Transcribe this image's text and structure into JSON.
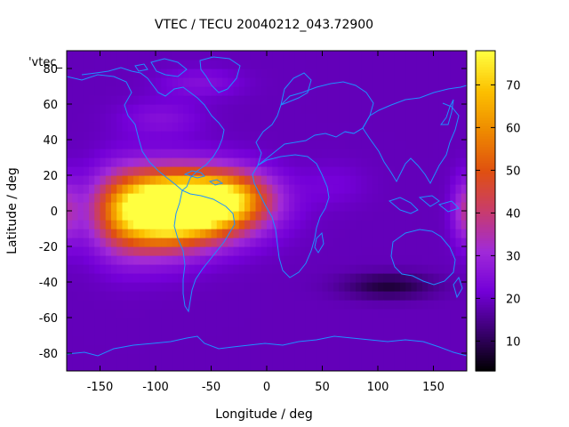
{
  "chart_data": {
    "type": "heatmap",
    "title": "VTEC / TECU 20040212_043.72900",
    "xlabel": "Longitude / deg",
    "ylabel": "Latitude / deg",
    "series_key": "'vtec_",
    "xlim": [
      -180,
      180
    ],
    "ylim": [
      -90,
      90
    ],
    "x_ticks": [
      -150,
      -100,
      -50,
      0,
      50,
      100,
      150
    ],
    "y_ticks": [
      -80,
      -60,
      -40,
      -20,
      0,
      20,
      40,
      60,
      80
    ],
    "colorbar": {
      "range": [
        3,
        78
      ],
      "ticks": [
        10,
        20,
        30,
        40,
        50,
        60,
        70
      ],
      "palette": [
        "#000000",
        "#3a0070",
        "#7400d8",
        "#a02ad8",
        "#c83c6c",
        "#e05010",
        "#ee8a00",
        "#fcc000",
        "#ffff40"
      ]
    },
    "grid": false,
    "overlay": "coastlines",
    "colors": {
      "coastline": "#1e90ff",
      "background_plasma": "#7a16f0"
    },
    "features": [
      {
        "lon": -70,
        "lat": 3,
        "sx": 55,
        "sy": 18,
        "value": 73
      },
      {
        "lon": -105,
        "lat": -2,
        "sx": 45,
        "sy": 22,
        "value": 33
      },
      {
        "lon": -30,
        "lat": 8,
        "sx": 35,
        "sy": 14,
        "value": 22
      },
      {
        "lon": -130,
        "lat": 0,
        "sx": 25,
        "sy": 25,
        "value": 10
      },
      {
        "lon": -95,
        "lat": 52,
        "sx": 35,
        "sy": 10,
        "value": 6
      },
      {
        "lon": 180,
        "lat": 0,
        "sx": 12,
        "sy": 18,
        "value": 18
      },
      {
        "lon": -180,
        "lat": 0,
        "sx": 12,
        "sy": 18,
        "value": 12
      },
      {
        "lon": 110,
        "lat": -42,
        "sx": 40,
        "sy": 7,
        "value": -11
      },
      {
        "lon": -60,
        "lat": 72,
        "sx": 35,
        "sy": 8,
        "value": 6
      },
      {
        "lon": 60,
        "lat": 15,
        "sx": 30,
        "sy": 12,
        "value": 3
      }
    ],
    "baseline_value": 19
  }
}
